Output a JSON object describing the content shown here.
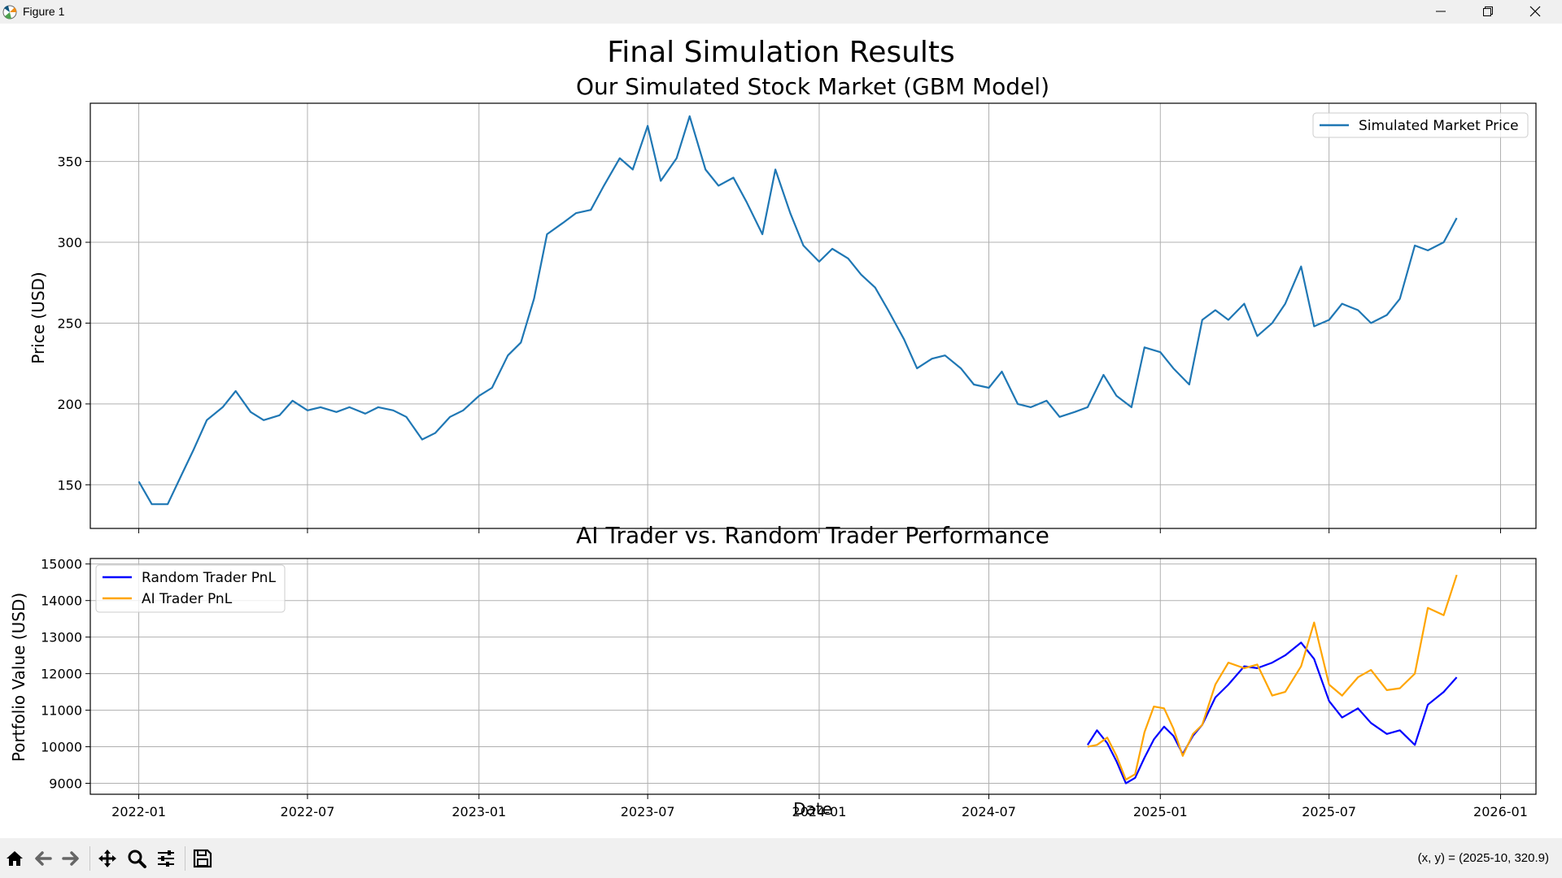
{
  "window": {
    "title": "Figure 1",
    "icon": "matplotlib-icon"
  },
  "window_controls": [
    "minimize-icon",
    "restore-icon",
    "close-icon"
  ],
  "figure": {
    "suptitle": "Final Simulation Results"
  },
  "colors": {
    "market": "#1f77b4",
    "random": "#0000ff",
    "ai": "#ffa500",
    "grid": "#b0b0b0"
  },
  "chart_data": [
    {
      "type": "line",
      "title": "Our Simulated Stock Market (GBM Model)",
      "xlabel": "",
      "ylabel": "Price (USD)",
      "xlim": [
        "2021-11-10",
        "2026-02-08"
      ],
      "ylim": [
        123,
        386
      ],
      "yticks": [
        150,
        200,
        250,
        300,
        350
      ],
      "xticks": [
        "2022-01",
        "2022-07",
        "2023-01",
        "2023-07",
        "2024-01",
        "2024-07",
        "2025-01",
        "2025-07",
        "2026-01"
      ],
      "grid": true,
      "legend": {
        "placement": "upper right",
        "entries": [
          "Simulated Market Price"
        ]
      },
      "series": [
        {
          "name": "Simulated Market Price",
          "x": [
            "2022-01-01",
            "2022-01-15",
            "2022-02-01",
            "2022-02-15",
            "2022-03-01",
            "2022-03-15",
            "2022-04-01",
            "2022-04-15",
            "2022-05-01",
            "2022-05-15",
            "2022-06-01",
            "2022-06-15",
            "2022-07-01",
            "2022-07-15",
            "2022-08-01",
            "2022-08-15",
            "2022-09-01",
            "2022-09-15",
            "2022-10-01",
            "2022-10-15",
            "2022-11-01",
            "2022-11-15",
            "2022-12-01",
            "2022-12-15",
            "2023-01-01",
            "2023-01-15",
            "2023-02-01",
            "2023-02-15",
            "2023-03-01",
            "2023-03-15",
            "2023-04-01",
            "2023-04-15",
            "2023-05-01",
            "2023-05-15",
            "2023-06-01",
            "2023-06-15",
            "2023-07-01",
            "2023-07-15",
            "2023-08-01",
            "2023-08-15",
            "2023-09-01",
            "2023-09-15",
            "2023-10-01",
            "2023-10-15",
            "2023-11-01",
            "2023-11-15",
            "2023-12-01",
            "2023-12-15",
            "2024-01-01",
            "2024-01-15",
            "2024-02-01",
            "2024-02-15",
            "2024-03-01",
            "2024-03-15",
            "2024-04-01",
            "2024-04-15",
            "2024-05-01",
            "2024-05-15",
            "2024-06-01",
            "2024-06-15",
            "2024-07-01",
            "2024-07-15",
            "2024-08-01",
            "2024-08-15",
            "2024-09-01",
            "2024-09-15",
            "2024-10-01",
            "2024-10-15",
            "2024-11-01",
            "2024-11-15",
            "2024-12-01",
            "2024-12-15",
            "2025-01-01",
            "2025-01-15",
            "2025-02-01",
            "2025-02-15",
            "2025-03-01",
            "2025-03-15",
            "2025-04-01",
            "2025-04-15",
            "2025-05-01",
            "2025-05-15",
            "2025-06-01",
            "2025-06-15",
            "2025-07-01",
            "2025-07-15",
            "2025-08-01",
            "2025-08-15",
            "2025-09-01",
            "2025-09-15",
            "2025-10-01",
            "2025-10-15",
            "2025-11-01",
            "2025-11-15"
          ],
          "y": [
            152,
            138,
            138,
            155,
            172,
            190,
            198,
            208,
            195,
            190,
            193,
            202,
            196,
            198,
            195,
            198,
            194,
            198,
            196,
            192,
            178,
            182,
            192,
            196,
            205,
            210,
            230,
            238,
            265,
            305,
            312,
            318,
            320,
            335,
            352,
            345,
            372,
            338,
            352,
            378,
            345,
            335,
            340,
            325,
            305,
            345,
            318,
            298,
            288,
            296,
            290,
            280,
            272,
            258,
            240,
            222,
            228,
            230,
            222,
            212,
            210,
            220,
            200,
            198,
            202,
            192,
            195,
            198,
            218,
            205,
            198,
            235,
            232,
            222,
            212,
            252,
            258,
            252,
            262,
            242,
            250,
            262,
            285,
            248,
            252,
            262,
            258,
            250,
            255,
            265,
            298,
            295,
            300,
            315
          ]
        }
      ]
    },
    {
      "type": "line",
      "title": "AI Trader vs. Random Trader Performance",
      "xlabel": "Date",
      "ylabel": "Portfolio Value (USD)",
      "xlim": [
        "2021-11-10",
        "2026-02-08"
      ],
      "ylim": [
        8700,
        15150
      ],
      "yticks": [
        9000,
        10000,
        11000,
        12000,
        13000,
        14000,
        15000
      ],
      "xticks": [
        "2022-01",
        "2022-07",
        "2023-01",
        "2023-07",
        "2024-01",
        "2024-07",
        "2025-01",
        "2025-07",
        "2026-01"
      ],
      "grid": true,
      "legend": {
        "placement": "upper left",
        "entries": [
          "Random Trader PnL",
          "AI Trader PnL"
        ]
      },
      "series": [
        {
          "name": "Random Trader PnL",
          "x": [
            "2024-10-15",
            "2024-10-25",
            "2024-11-05",
            "2024-11-15",
            "2024-11-25",
            "2024-12-05",
            "2024-12-15",
            "2024-12-25",
            "2025-01-05",
            "2025-01-15",
            "2025-01-25",
            "2025-02-05",
            "2025-02-15",
            "2025-03-01",
            "2025-03-15",
            "2025-04-01",
            "2025-04-15",
            "2025-05-01",
            "2025-05-15",
            "2025-06-01",
            "2025-06-15",
            "2025-07-01",
            "2025-07-15",
            "2025-08-01",
            "2025-08-15",
            "2025-09-01",
            "2025-09-15",
            "2025-10-01",
            "2025-10-15",
            "2025-11-01",
            "2025-11-15"
          ],
          "y": [
            10050,
            10450,
            10100,
            9600,
            9000,
            9150,
            9700,
            10200,
            10550,
            10300,
            9800,
            10300,
            10600,
            11350,
            11700,
            12200,
            12150,
            12300,
            12500,
            12850,
            12400,
            11250,
            10800,
            11050,
            10650,
            10350,
            10450,
            10050,
            11150,
            11500,
            11900
          ]
        },
        {
          "name": "AI Trader PnL",
          "x": [
            "2024-10-15",
            "2024-10-25",
            "2024-11-05",
            "2024-11-15",
            "2024-11-25",
            "2024-12-05",
            "2024-12-15",
            "2024-12-25",
            "2025-01-05",
            "2025-01-15",
            "2025-01-25",
            "2025-02-05",
            "2025-02-15",
            "2025-03-01",
            "2025-03-15",
            "2025-04-01",
            "2025-04-15",
            "2025-05-01",
            "2025-05-15",
            "2025-06-01",
            "2025-06-15",
            "2025-07-01",
            "2025-07-15",
            "2025-08-01",
            "2025-08-15",
            "2025-09-01",
            "2025-09-15",
            "2025-10-01",
            "2025-10-15",
            "2025-11-01",
            "2025-11-15"
          ],
          "y": [
            10000,
            10050,
            10250,
            9750,
            9100,
            9250,
            10400,
            11100,
            11050,
            10500,
            9750,
            10350,
            10600,
            11700,
            12300,
            12150,
            12250,
            11400,
            11500,
            12200,
            13400,
            11700,
            11400,
            11900,
            12100,
            11550,
            11600,
            12000,
            13800,
            13600,
            14700
          ]
        }
      ]
    }
  ],
  "toolbar": {
    "buttons": [
      "home-icon",
      "back-icon",
      "forward-icon",
      "pan-icon",
      "zoom-icon",
      "configure-subplots-icon",
      "save-icon"
    ],
    "coords": "(x, y) = (2025-10, 320.9)"
  }
}
